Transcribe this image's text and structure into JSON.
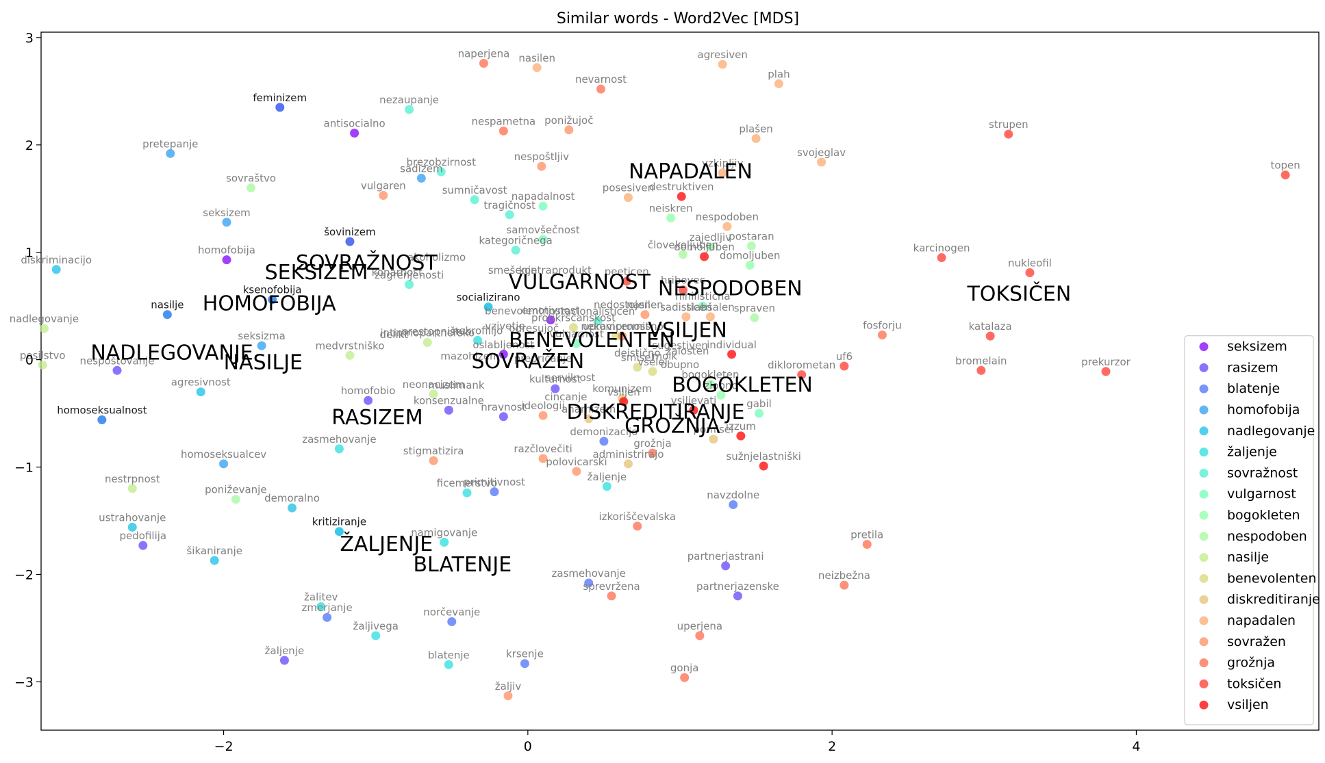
{
  "chart_data": {
    "type": "scatter",
    "title": "Similar words - Word2Vec [MDS]",
    "xlabel": "",
    "ylabel": "",
    "xlim": [
      -3.2,
      5.2
    ],
    "ylim": [
      -3.45,
      3.05
    ],
    "xticks": [
      -2,
      0,
      2,
      4
    ],
    "yticks": [
      -3,
      -2,
      -1,
      0,
      1,
      2,
      3
    ],
    "grid": false,
    "legend_position": "lower-right",
    "series": [
      {
        "name": "seksizem",
        "color": "#8000ff",
        "points": [
          {
            "x": -1.14,
            "y": 2.11,
            "label": "antisocialno"
          },
          {
            "x": -1.98,
            "y": 0.93,
            "label": "homofobija"
          },
          {
            "x": 0.15,
            "y": 0.37,
            "label": "emotivnost"
          },
          {
            "x": -0.16,
            "y": 0.05,
            "label": "oslabljenost"
          }
        ]
      },
      {
        "name": "rasizem",
        "color": "#6245fd",
        "points": [
          {
            "x": -2.7,
            "y": -0.1,
            "label": "nespoštovanje"
          },
          {
            "x": -2.53,
            "y": -1.73,
            "label": "pedofilija"
          },
          {
            "x": -1.05,
            "y": -0.38,
            "label": "homofobio"
          },
          {
            "x": -0.52,
            "y": -0.47,
            "label": "konsenzualne"
          },
          {
            "x": -0.16,
            "y": -0.53,
            "label": "nravnost"
          },
          {
            "x": 0.18,
            "y": -0.27,
            "label": "kulturnost"
          },
          {
            "x": 1.3,
            "y": -1.92,
            "label": "partnerjastrani"
          },
          {
            "x": 1.38,
            "y": -2.2,
            "label": "partnerjazenske"
          },
          {
            "x": -1.6,
            "y": -2.8,
            "label": "žaljenje"
          }
        ]
      },
      {
        "name": "blatenje",
        "color": "#4c72f9",
        "points": [
          {
            "x": -1.32,
            "y": -2.4,
            "label": "zmerjanje"
          },
          {
            "x": -0.5,
            "y": -2.44,
            "label": "norčevanje"
          },
          {
            "x": -0.02,
            "y": -2.83,
            "label": "krsenje"
          },
          {
            "x": 0.4,
            "y": -2.08,
            "label": "zasmehovanje"
          },
          {
            "x": 0.5,
            "y": -0.76,
            "label": "demonizacijo"
          },
          {
            "x": -0.22,
            "y": -1.23,
            "label": "primitivnost"
          },
          {
            "x": 1.35,
            "y": -1.35,
            "label": "navzdolne"
          }
        ]
      },
      {
        "name": "homofobija",
        "color": "#2c9ef2",
        "points": [
          {
            "x": -1.98,
            "y": 1.28,
            "label": "seksizem"
          },
          {
            "x": -0.7,
            "y": 1.69,
            "label": "sadizem"
          },
          {
            "x": -1.75,
            "y": 0.13,
            "label": "seksizma"
          },
          {
            "x": -2.0,
            "y": -0.97,
            "label": "homoseksualcev"
          },
          {
            "x": -2.35,
            "y": 1.92,
            "label": "pretepanje"
          }
        ]
      },
      {
        "name": "nadlegovanje",
        "color": "#18bfe6",
        "points": [
          {
            "x": -3.1,
            "y": 0.84,
            "label": "diskriminacijo"
          },
          {
            "x": -2.06,
            "y": -1.87,
            "label": "šikaniranje"
          },
          {
            "x": -2.6,
            "y": -1.56,
            "label": "ustrahovanje"
          },
          {
            "x": -1.55,
            "y": -1.38,
            "label": "demoralno"
          },
          {
            "x": -2.15,
            "y": -0.3,
            "label": "agresivnost"
          }
        ]
      },
      {
        "name": "žaljenje",
        "color": "#2adddd",
        "points": [
          {
            "x": -1.36,
            "y": -2.3,
            "label": "žalitev"
          },
          {
            "x": -1.24,
            "y": -0.83,
            "label": "zasmehovanje"
          },
          {
            "x": -0.55,
            "y": -1.7,
            "label": "namigovanje"
          },
          {
            "x": -0.52,
            "y": -2.84,
            "label": "blatenje"
          },
          {
            "x": -1.0,
            "y": -2.57,
            "label": "žaljivega"
          },
          {
            "x": 0.52,
            "y": -1.18,
            "label": "žaljenje"
          },
          {
            "x": -0.4,
            "y": -1.24,
            "label": "ficemerstvo"
          },
          {
            "x": -0.33,
            "y": 0.18,
            "label": "nekrofilijo"
          }
        ]
      },
      {
        "name": "sovražnost",
        "color": "#49f0cf",
        "points": [
          {
            "x": -0.78,
            "y": 2.33,
            "label": "nezaupanje"
          },
          {
            "x": -0.57,
            "y": 1.75,
            "label": "brezobzirnost"
          },
          {
            "x": -0.35,
            "y": 1.49,
            "label": "sumničavost"
          },
          {
            "x": -0.12,
            "y": 1.35,
            "label": "tragičnost"
          },
          {
            "x": -0.08,
            "y": 1.02,
            "label": "kategoričnega"
          },
          {
            "x": -0.78,
            "y": 0.7,
            "label": "zagrenjenosti"
          },
          {
            "x": 0.46,
            "y": 0.36,
            "label": "racionalisticen"
          }
        ]
      },
      {
        "name": "vulgarnost",
        "color": "#72feb6",
        "points": [
          {
            "x": 0.1,
            "y": 1.43,
            "label": "napadalnost"
          },
          {
            "x": 0.1,
            "y": 1.12,
            "label": "samovšečnost"
          },
          {
            "x": 0.32,
            "y": 0.15,
            "label": "vulgarnost"
          },
          {
            "x": 1.15,
            "y": 0.5,
            "label": "nihilistična"
          },
          {
            "x": 1.52,
            "y": -0.5,
            "label": "gabil"
          }
        ]
      },
      {
        "name": "bogokleten",
        "color": "#8ffea5",
        "points": [
          {
            "x": 0.94,
            "y": 1.32,
            "label": "neiskren"
          },
          {
            "x": 1.2,
            "y": 1.05,
            "label": "zajedljiv"
          },
          {
            "x": 1.46,
            "y": 0.88,
            "label": "domoljuben"
          },
          {
            "x": 1.2,
            "y": -0.23,
            "label": "bogokleten"
          },
          {
            "x": 1.27,
            "y": -0.33,
            "label": "zlobno"
          }
        ]
      },
      {
        "name": "nespodoben",
        "color": "#a4f89d",
        "points": [
          {
            "x": -1.82,
            "y": 1.6,
            "label": "sovraštvo"
          },
          {
            "x": 1.47,
            "y": 1.06,
            "label": "postaran"
          },
          {
            "x": 1.02,
            "y": 0.98,
            "label": "človekoljuben"
          },
          {
            "x": 1.49,
            "y": 0.39,
            "label": "spraven"
          },
          {
            "x": -1.92,
            "y": -1.3,
            "label": "poniževanje"
          }
        ]
      },
      {
        "name": "nasilje",
        "color": "#bfeb89",
        "points": [
          {
            "x": -3.18,
            "y": 0.29,
            "label": "nadlegovanje"
          },
          {
            "x": -3.19,
            "y": -0.05,
            "label": "posilstvo"
          },
          {
            "x": -2.6,
            "y": -1.2,
            "label": "nestrpnost"
          },
          {
            "x": -1.17,
            "y": 0.04,
            "label": "medvrstniško"
          },
          {
            "x": -0.66,
            "y": 0.16,
            "label": "intimnopartnersko"
          },
          {
            "x": -0.62,
            "y": -0.32,
            "label": "neonacizem"
          }
        ]
      },
      {
        "name": "benevolenten",
        "color": "#d7d97a",
        "points": [
          {
            "x": 0.72,
            "y": -0.07,
            "label": "smisel"
          },
          {
            "x": 0.82,
            "y": -0.11,
            "label": "vselej"
          },
          {
            "x": 0.58,
            "y": 0.22,
            "label": "upravicenost"
          },
          {
            "x": 0.3,
            "y": 0.3,
            "label": "protikrscanskost"
          }
        ]
      },
      {
        "name": "diskreditiranje",
        "color": "#e6c173",
        "points": [
          {
            "x": 1.22,
            "y": -0.74,
            "label": "pomisel"
          },
          {
            "x": 0.66,
            "y": -0.97,
            "label": "administrirajo"
          },
          {
            "x": 0.4,
            "y": -0.55,
            "label": "anarhizem"
          },
          {
            "x": 0.62,
            "y": -0.36,
            "label": "komunizem"
          }
        ]
      },
      {
        "name": "napadalen",
        "color": "#fcaa70",
        "points": [
          {
            "x": 0.06,
            "y": 2.72,
            "label": "nasilen"
          },
          {
            "x": 1.28,
            "y": 2.75,
            "label": "agresiven"
          },
          {
            "x": 1.65,
            "y": 2.57,
            "label": "plah"
          },
          {
            "x": 1.5,
            "y": 2.06,
            "label": "plašen"
          },
          {
            "x": 1.93,
            "y": 1.84,
            "label": "svojeglav"
          },
          {
            "x": 1.28,
            "y": 1.74,
            "label": "vzkipljiv"
          },
          {
            "x": 0.66,
            "y": 1.51,
            "label": "posesiven"
          },
          {
            "x": 1.31,
            "y": 1.24,
            "label": "nespodoben"
          },
          {
            "x": 1.04,
            "y": 0.4,
            "label": "sadisticen"
          },
          {
            "x": 1.2,
            "y": 0.4,
            "label": "slabšalen"
          }
        ]
      },
      {
        "name": "sovražen",
        "color": "#ff8e60",
        "points": [
          {
            "x": -0.95,
            "y": 1.53,
            "label": "vulgaren"
          },
          {
            "x": 0.09,
            "y": 1.8,
            "label": "nespoštljiv"
          },
          {
            "x": 0.27,
            "y": 2.14,
            "label": "ponižujoč"
          },
          {
            "x": -0.62,
            "y": -0.94,
            "label": "stigmatizira"
          },
          {
            "x": 0.1,
            "y": -0.92,
            "label": "razčlovečiti"
          },
          {
            "x": 0.62,
            "y": 0.22,
            "label": "nekompromisno"
          },
          {
            "x": 0.1,
            "y": -0.52,
            "label": "ideologij"
          },
          {
            "x": -0.13,
            "y": -3.13,
            "label": "žaljiv"
          },
          {
            "x": 0.77,
            "y": 0.42,
            "label": "nasilen"
          },
          {
            "x": 0.32,
            "y": -1.04,
            "label": "polovicarski"
          }
        ]
      },
      {
        "name": "grožnja",
        "color": "#ff6b4c",
        "points": [
          {
            "x": -0.29,
            "y": 2.76,
            "label": "naperjena"
          },
          {
            "x": 0.48,
            "y": 2.52,
            "label": "nevarnost"
          },
          {
            "x": -0.16,
            "y": 2.13,
            "label": "nespametna"
          },
          {
            "x": 2.23,
            "y": -1.72,
            "label": "pretila"
          },
          {
            "x": 2.08,
            "y": -2.1,
            "label": "neizbežna"
          },
          {
            "x": 0.72,
            "y": -1.55,
            "label": "izkoriščevalska"
          },
          {
            "x": 0.55,
            "y": -2.2,
            "label": "sprevržena"
          },
          {
            "x": 1.13,
            "y": -2.57,
            "label": "uperjena"
          },
          {
            "x": 1.03,
            "y": -2.96,
            "label": "gonja"
          },
          {
            "x": 2.33,
            "y": 0.23,
            "label": "fosforju"
          },
          {
            "x": 0.82,
            "y": -0.87,
            "label": "grožnja"
          }
        ]
      },
      {
        "name": "toksičen",
        "color": "#ff3a2e",
        "points": [
          {
            "x": 3.16,
            "y": 2.1,
            "label": "strupen"
          },
          {
            "x": 4.98,
            "y": 1.72,
            "label": "topen"
          },
          {
            "x": 2.72,
            "y": 0.95,
            "label": "karcinogen"
          },
          {
            "x": 3.3,
            "y": 0.81,
            "label": "nukleofil"
          },
          {
            "x": 3.04,
            "y": 0.22,
            "label": "katalaza"
          },
          {
            "x": 2.98,
            "y": -0.1,
            "label": "bromelain"
          },
          {
            "x": 3.8,
            "y": -0.11,
            "label": "prekurzor"
          },
          {
            "x": 2.08,
            "y": -0.06,
            "label": "uf6"
          },
          {
            "x": 1.8,
            "y": -0.14,
            "label": "diklorometan"
          },
          {
            "x": 0.65,
            "y": 0.73,
            "label": "peeticen"
          },
          {
            "x": 1.02,
            "y": 0.65,
            "label": "hribovec"
          }
        ]
      },
      {
        "name": "vsiljen",
        "color": "#ff0000",
        "points": [
          {
            "x": 1.01,
            "y": 1.52,
            "label": "destruktiven"
          },
          {
            "x": 1.16,
            "y": 0.96,
            "label": "domoljuben"
          },
          {
            "x": 1.34,
            "y": 0.05,
            "label": "individual"
          },
          {
            "x": 1.4,
            "y": -0.71,
            "label": "izzum"
          },
          {
            "x": 1.55,
            "y": -0.99,
            "label": "sužnjelastniški"
          },
          {
            "x": 0.63,
            "y": -0.39,
            "label": "vsiljen"
          },
          {
            "x": 1.09,
            "y": -0.47,
            "label": "vsiljevati"
          }
        ]
      }
    ],
    "dark_labels": [
      {
        "x": -1.63,
        "y": 2.35,
        "label": "feminizem",
        "color": "#3a5cf0"
      },
      {
        "x": -1.17,
        "y": 1.1,
        "label": "šovinizem",
        "color": "#3a5cf0"
      },
      {
        "x": -2.37,
        "y": 0.42,
        "label": "nasilje",
        "color": "#2c7ff0"
      },
      {
        "x": -1.68,
        "y": 0.56,
        "label": "ksenofobija",
        "color": "#2c7ff0"
      },
      {
        "x": -2.8,
        "y": -0.56,
        "label": "homoseksualnost",
        "color": "#2c7ff0"
      },
      {
        "x": -0.26,
        "y": 0.49,
        "label": "socializirano",
        "color": "#18bfe6"
      },
      {
        "x": -1.24,
        "y": -1.6,
        "label": "kritiziranje",
        "color": "#18bfe6"
      }
    ],
    "big_labels": [
      {
        "x": -1.06,
        "y": 0.84,
        "label": "SOVRAŽNOST"
      },
      {
        "x": -1.39,
        "y": 0.75,
        "label": "SEKSIZEM"
      },
      {
        "x": 0.34,
        "y": 0.66,
        "label": "VULGARNOST"
      },
      {
        "x": 1.07,
        "y": 1.69,
        "label": "NAPADALEN"
      },
      {
        "x": 1.33,
        "y": 0.6,
        "label": "NESPODOBEN"
      },
      {
        "x": 3.23,
        "y": 0.55,
        "label": "TOKSIČEN"
      },
      {
        "x": -1.7,
        "y": 0.46,
        "label": "HOMOFOBIJA"
      },
      {
        "x": 1.05,
        "y": 0.21,
        "label": "VSILJEN"
      },
      {
        "x": 0.42,
        "y": 0.12,
        "label": "BENEVOLENTEN"
      },
      {
        "x": -2.34,
        "y": 0.0,
        "label": "NADLEGOVANJE"
      },
      {
        "x": -1.74,
        "y": -0.09,
        "label": "NASILJE"
      },
      {
        "x": 0.0,
        "y": -0.08,
        "label": "SOVRAŽEN"
      },
      {
        "x": 1.41,
        "y": -0.3,
        "label": "BOGOKLETEN"
      },
      {
        "x": 0.84,
        "y": -0.55,
        "label": "DISKREDITIRANJE"
      },
      {
        "x": -0.99,
        "y": -0.6,
        "label": "RASIZEM"
      },
      {
        "x": 0.95,
        "y": -0.68,
        "label": "GROŽNJA"
      },
      {
        "x": -0.93,
        "y": -1.78,
        "label": "ŽALJENJE"
      },
      {
        "x": -0.43,
        "y": -1.97,
        "label": "BLATENJE"
      }
    ],
    "extra_labels": [
      {
        "x": -0.6,
        "y": 0.92,
        "label": "akoholizmo"
      },
      {
        "x": -0.86,
        "y": 0.78,
        "label": "konarnost"
      },
      {
        "x": -0.1,
        "y": 0.8,
        "label": "smešenje"
      },
      {
        "x": 0.18,
        "y": 0.8,
        "label": "kontraprodukt"
      },
      {
        "x": -0.02,
        "y": 0.42,
        "label": "benevolentnost"
      },
      {
        "x": -0.6,
        "y": 0.23,
        "label": "prestopništvo"
      },
      {
        "x": -0.88,
        "y": 0.2,
        "label": "delikt"
      },
      {
        "x": -0.38,
        "y": 0.0,
        "label": "mazohizem"
      },
      {
        "x": -0.15,
        "y": 0.28,
        "label": "vzivetje"
      },
      {
        "x": 0.04,
        "y": 0.26,
        "label": "odresujoč"
      },
      {
        "x": 0.62,
        "y": 0.48,
        "label": "nedostojen"
      },
      {
        "x": 0.72,
        "y": 0.03,
        "label": "deistično"
      },
      {
        "x": 0.9,
        "y": 0.0,
        "label": "molk"
      },
      {
        "x": 1.0,
        "y": -0.08,
        "label": "obupno"
      },
      {
        "x": 0.1,
        "y": -0.02,
        "label": "prepričanje"
      },
      {
        "x": 0.28,
        "y": -0.2,
        "label": "servilnost"
      },
      {
        "x": -0.47,
        "y": -0.27,
        "label": "muslimank"
      },
      {
        "x": 0.25,
        "y": -0.38,
        "label": "cincanje"
      },
      {
        "x": 1.0,
        "y": 0.1,
        "label": "sugestiven"
      },
      {
        "x": 1.05,
        "y": 0.05,
        "label": "zalosten"
      }
    ],
    "legend_entries": [
      "seksizem",
      "rasizem",
      "blatenje",
      "homofobija",
      "nadlegovanje",
      "žaljenje",
      "sovražnost",
      "vulgarnost",
      "bogokleten",
      "nespodoben",
      "nasilje",
      "benevolenten",
      "diskreditiranje",
      "napadalen",
      "sovražen",
      "grožnja",
      "toksičen",
      "vsiljen"
    ]
  }
}
